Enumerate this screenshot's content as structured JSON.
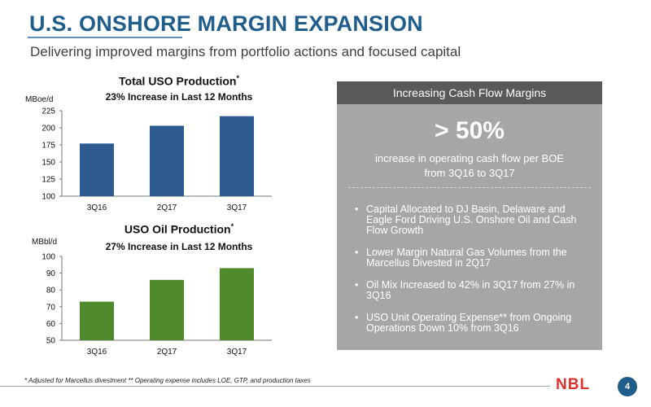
{
  "header": {
    "title": "U.S. ONSHORE MARGIN EXPANSION",
    "subtitle": "Delivering improved margins from portfolio actions and focused capital"
  },
  "chart_data": [
    {
      "type": "bar",
      "title": "Total USO Production",
      "title_mark": "*",
      "subtitle": "23% Increase in Last 12 Months",
      "ylabel": "MBoe/d",
      "categories": [
        "3Q16",
        "2Q17",
        "3Q17"
      ],
      "values": [
        177,
        203,
        217
      ],
      "ylim": [
        100,
        225
      ],
      "yticks": [
        100,
        125,
        150,
        175,
        200,
        225
      ],
      "color": "#2e5c92",
      "grid": false
    },
    {
      "type": "bar",
      "title": "USO Oil Production",
      "title_mark": "*",
      "subtitle": "27% Increase in Last 12 Months",
      "ylabel": "MBbl/d",
      "categories": [
        "3Q16",
        "2Q17",
        "3Q17"
      ],
      "values": [
        73,
        86,
        93
      ],
      "ylim": [
        50,
        100
      ],
      "yticks": [
        50,
        60,
        70,
        80,
        90,
        100
      ],
      "color": "#4f8a2e",
      "grid": false
    }
  ],
  "panel": {
    "header": "Increasing Cash Flow Margins",
    "big_stat": "> 50%",
    "desc_line1": "increase in operating cash flow per BOE",
    "desc_line2": "from 3Q16 to 3Q17",
    "bullet_char": "•",
    "bullets": [
      "Capital Allocated to DJ Basin, Delaware and Eagle Ford Driving U.S. Onshore Oil and Cash Flow Growth",
      "Lower Margin Natural Gas Volumes from the Marcellus Divested in 2Q17",
      "Oil Mix Increased to 42% in 3Q17 from 27% in 3Q16",
      "USO Unit Operating Expense** from Ongoing Operations Down 10% from 3Q16"
    ]
  },
  "footer": {
    "footnote": "* Adjusted for Marcellus divestment  ** Operating expense includes LOE, GTP, and production taxes",
    "logo": "NBL",
    "page_number": "4"
  },
  "colors": {
    "title_blue": "#1f5d8c",
    "bar_blue": "#2e5c92",
    "bar_green": "#4f8a2e",
    "panel_gray": "#a6a6a6",
    "panel_header": "#595959",
    "logo_red": "#e0312f"
  }
}
